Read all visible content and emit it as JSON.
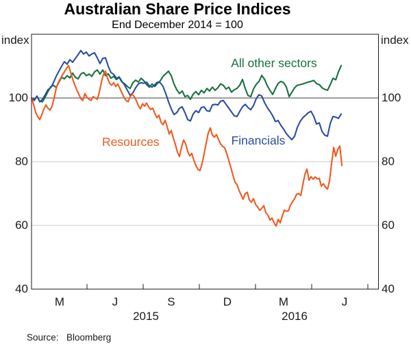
{
  "page": {
    "source_label": "Source:",
    "source_value": "Bloomberg"
  },
  "chart_data": {
    "type": "line",
    "title": "Australian Share Price Indices",
    "subtitle": "End December 2014 = 100",
    "xlabel": "",
    "ylabel": "index",
    "x_unit": "months since 31 December 2014",
    "legend_position": "inline-labels",
    "grid": "horizontal-only",
    "colors": {
      "frame": "#1a1a1a",
      "gridline": "#c9c9c9",
      "reference_line": "#3d3d3d"
    },
    "y_axis": {
      "min": 40,
      "max": 120,
      "ticks": [
        100,
        80,
        60,
        40
      ],
      "gridlines": [
        80,
        60
      ],
      "reference_line": 100,
      "unit_label": "index"
    },
    "x_axis": {
      "months_span": 18.53,
      "tick_months": [
        2.96,
        5.96,
        8.96,
        11.96,
        14.96,
        17.96
      ],
      "month_labels": [
        {
          "m": 1.5,
          "text": "M"
        },
        {
          "m": 4.46,
          "text": "J"
        },
        {
          "m": 7.46,
          "text": "S"
        },
        {
          "m": 10.46,
          "text": "D"
        },
        {
          "m": 13.46,
          "text": "M"
        },
        {
          "m": 16.72,
          "text": "J"
        }
      ],
      "year_labels": [
        {
          "m": 6.11,
          "text": "2015"
        },
        {
          "m": 14.05,
          "text": "2016"
        }
      ]
    },
    "series": [
      {
        "id": "all-other-sectors",
        "name": "All other sectors",
        "color": "#16713d",
        "label": {
          "m": 12.95,
          "v": 111
        },
        "x_start": 0,
        "x_step": 0.14636,
        "values": [
          100,
          99.5,
          100.5,
          99,
          98.8,
          100.3,
          102,
          103.5,
          104,
          103.3,
          105,
          106.5,
          106,
          107,
          106.3,
          107.8,
          106.5,
          106,
          107.5,
          108,
          107,
          107.5,
          106.8,
          108.2,
          108.8,
          107.5,
          108.8,
          107,
          107.6,
          106.2,
          106.8,
          105.8,
          106.4,
          105,
          104.4,
          103.6,
          103,
          104.8,
          105.6,
          105,
          106.2,
          105.4,
          104.2,
          103.4,
          104.4,
          103.6,
          104.6,
          105.4,
          106.8,
          107.6,
          108.4,
          107,
          104.4,
          102.6,
          101.4,
          102.2,
          100.4,
          100.8,
          99.6,
          101.2,
          102,
          101,
          102.4,
          101.6,
          103,
          102.2,
          103.4,
          102.4,
          103.2,
          104.4,
          104,
          102.8,
          103.4,
          101.8,
          102.6,
          103,
          104,
          105.8,
          103,
          100.8,
          100.4,
          102.8,
          104.3,
          105.2,
          107.1,
          105.9,
          103.9,
          102.4,
          101.1,
          103,
          104.6,
          105.2,
          104.8,
          103.4,
          100.4,
          101.8,
          103.2,
          104,
          104.2,
          104.4,
          104.7,
          105,
          105.2,
          105.5,
          104.5,
          104.2,
          103.2,
          102.7,
          102.4,
          104.2,
          106.2,
          105.7,
          108.2,
          110.2
        ]
      },
      {
        "id": "financials",
        "name": "Financials",
        "color": "#2a4da1",
        "label": {
          "m": 12.11,
          "v": 86.7
        },
        "x_start": 0,
        "x_step": 0.14636,
        "values": [
          100,
          99.2,
          100.6,
          98.8,
          99.6,
          101,
          102.6,
          103.2,
          104.8,
          106.8,
          108.4,
          110,
          111.4,
          110.6,
          112,
          111.2,
          112.4,
          113.6,
          114.9,
          113.8,
          114.4,
          113.2,
          113.8,
          114.2,
          112.6,
          110.8,
          112.4,
          112.6,
          110,
          108,
          107.4,
          106.2,
          106.6,
          105.2,
          104,
          102.4,
          100.8,
          101.6,
          103.2,
          104.4,
          104.8,
          104.6,
          105,
          103.8,
          103.4,
          104.2,
          105,
          104.8,
          103.6,
          101.4,
          98.8,
          96.6,
          94.8,
          95.4,
          96.8,
          97.2,
          95.4,
          93.2,
          92.8,
          95,
          96,
          95.4,
          97,
          97.2,
          96,
          95.8,
          97.8,
          98,
          97.8,
          99,
          99.2,
          98,
          96.8,
          95.6,
          94.4,
          94.2,
          95.8,
          97.2,
          98,
          97,
          96.3,
          97.6,
          99.8,
          101,
          100.6,
          98.6,
          97,
          95.8,
          94.4,
          92.6,
          92.9,
          91.4,
          90.2,
          88.8,
          87.8,
          86.9,
          88,
          90.8,
          92.6,
          93.8,
          94.6,
          95.4,
          95.8,
          94.2,
          91.8,
          92.2,
          89.5,
          88.3,
          88,
          92,
          94.2,
          94,
          93.6,
          95
        ]
      },
      {
        "id": "resources",
        "name": "Resources",
        "color": "#f2591e",
        "label": {
          "m": 5.3,
          "v": 86.2
        },
        "x_start": 0,
        "x_step": 0.10977,
        "values": [
          100,
          98,
          95.5,
          94.2,
          93.2,
          94.8,
          96.5,
          97.8,
          96.8,
          96.2,
          97.4,
          100,
          103,
          104.8,
          106,
          107.2,
          108.2,
          109.3,
          110.2,
          108.2,
          106,
          104.2,
          102.6,
          101.2,
          99.8,
          99.2,
          101.4,
          100.2,
          99.6,
          99.2,
          100.4,
          100,
          99.6,
          101.8,
          105,
          107.4,
          108.4,
          106.2,
          104.6,
          104,
          104.8,
          103.6,
          104.4,
          103,
          101.6,
          100.2,
          99.2,
          98.8,
          100.4,
          101.2,
          100.4,
          99.2,
          97.6,
          96.6,
          98.2,
          97.4,
          98.4,
          97.2,
          96.4,
          96.8,
          95.2,
          93.8,
          94.6,
          92.4,
          91.6,
          93,
          91,
          88.7,
          89.8,
          87.4,
          85.4,
          83,
          81.6,
          84.5,
          86.8,
          85.6,
          83.2,
          81.8,
          82.6,
          80.4,
          78.8,
          77.6,
          77.2,
          79.4,
          82.4,
          85.8,
          89,
          90.6,
          88.4,
          87.7,
          88.5,
          87,
          85.6,
          84.8,
          84.4,
          82.6,
          80.4,
          78.2,
          75.8,
          73.6,
          72.8,
          71,
          69.6,
          68.2,
          70,
          70.4,
          68,
          67.3,
          68.4,
          66.6,
          65.8,
          64.7,
          65.4,
          66.2,
          64,
          63.2,
          61.7,
          62.3,
          60.8,
          59.8,
          61.9,
          60.8,
          63,
          64.8,
          64.4,
          64.6,
          66.4,
          67.4,
          68.4,
          69.8,
          70,
          69.4,
          72.8,
          76,
          77.7,
          74.2,
          75.3,
          74.5,
          75.2,
          74.6,
          74.8,
          72.3,
          73.1,
          72,
          71.4,
          74,
          79.5,
          84.5,
          81.7,
          83.9,
          84.9,
          78.8
        ]
      }
    ]
  }
}
